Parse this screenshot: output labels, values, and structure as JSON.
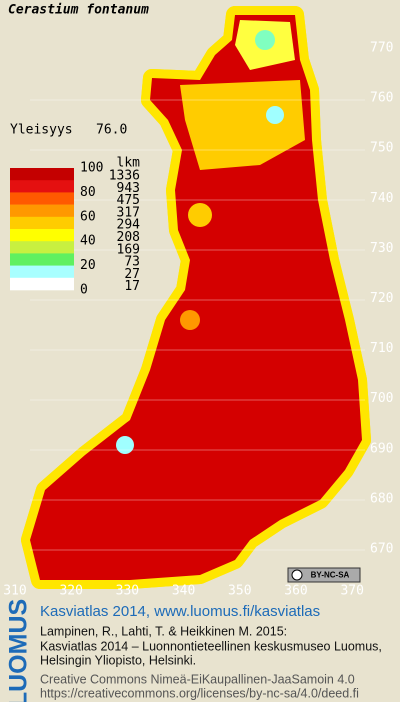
{
  "title": "Cerastium fontanum",
  "frequency": {
    "label": "Yleisyys",
    "value": "76.0"
  },
  "legend": {
    "scale_labels": [
      "100",
      "80",
      "60",
      "40",
      "20",
      "0"
    ],
    "count_header": "lkm",
    "counts": [
      1336,
      943,
      475,
      317,
      294,
      208,
      169,
      73,
      27,
      17
    ],
    "colors": [
      "#c40000",
      "#e41010",
      "#ff5a00",
      "#ff9800",
      "#ffcc00",
      "#ffff00",
      "#c8f040",
      "#60f060",
      "#a8ffff",
      "#ffffff"
    ]
  },
  "grid_labels": {
    "north": [
      770,
      760,
      750,
      740,
      730,
      720,
      710,
      700,
      690,
      680,
      670
    ],
    "east": [
      310,
      320,
      330,
      340,
      350,
      360,
      370
    ]
  },
  "license_badge": "BY-NC-SA",
  "footer": {
    "logo": "LUOMUS",
    "link": "Kasviatlas 2014, www.luomus.fi/kasviatlas",
    "citation": [
      "Lampinen, R., Lahti, T. & Heikkinen M. 2015:",
      "Kasviatlas 2014 – Luonnontieteellinen keskusmuseo Luomus,",
      "Helsingin Yliopisto, Helsinki."
    ],
    "license": [
      "Creative Commons Nimeä-EiKaupallinen-JaaSamoin 4.0",
      "https://creativecommons.org/licenses/by-nc-sa/4.0/deed.fi"
    ]
  }
}
